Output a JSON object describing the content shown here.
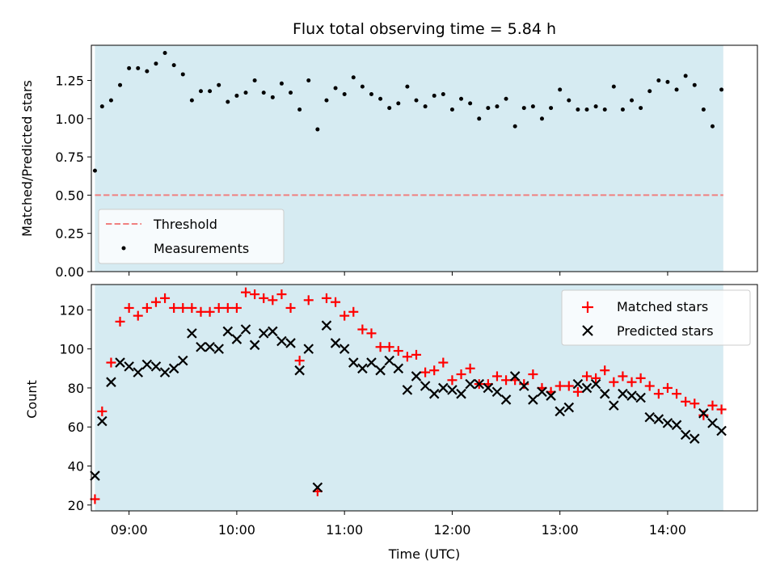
{
  "chart_data": {
    "type": "scatter",
    "title": "Flux total observing time = 5.84 h",
    "xlabel": "Time (UTC)",
    "x_unit": "UTC time of day",
    "xlim": [
      "08:39",
      "14:50"
    ],
    "x_ticks": [
      "09:00",
      "10:00",
      "11:00",
      "12:00",
      "13:00",
      "14:00"
    ],
    "observing_window": {
      "start": "08:41",
      "end": "14:31",
      "color": "#add8e6"
    },
    "x": [
      "08:41",
      "08:45",
      "08:50",
      "08:55",
      "09:00",
      "09:05",
      "09:10",
      "09:15",
      "09:20",
      "09:25",
      "09:30",
      "09:35",
      "09:40",
      "09:45",
      "09:50",
      "09:55",
      "10:00",
      "10:05",
      "10:10",
      "10:15",
      "10:20",
      "10:25",
      "10:30",
      "10:35",
      "10:40",
      "10:45",
      "10:50",
      "10:55",
      "11:00",
      "11:05",
      "11:10",
      "11:15",
      "11:20",
      "11:25",
      "11:30",
      "11:35",
      "11:40",
      "11:45",
      "11:50",
      "11:55",
      "12:00",
      "12:05",
      "12:10",
      "12:15",
      "12:20",
      "12:25",
      "12:30",
      "12:35",
      "12:40",
      "12:45",
      "12:50",
      "12:55",
      "13:00",
      "13:05",
      "13:10",
      "13:15",
      "13:20",
      "13:25",
      "13:30",
      "13:35",
      "13:40",
      "13:45",
      "13:50",
      "13:55",
      "14:00",
      "14:05",
      "14:10",
      "14:15",
      "14:20",
      "14:25",
      "14:30"
    ],
    "panels": [
      {
        "id": "ratio",
        "ylabel": "Matched/Predicted stars",
        "ylim": [
          0,
          1.48
        ],
        "y_ticks": [
          "0.00",
          "0.25",
          "0.50",
          "0.75",
          "1.00",
          "1.25"
        ],
        "threshold": 0.5,
        "legend_position": "lower-left",
        "series": [
          {
            "name": "Threshold",
            "style": "dashed-line",
            "color": "#f08080"
          },
          {
            "name": "Measurements",
            "style": "dot",
            "color": "#000000",
            "values": [
              0.66,
              1.08,
              1.12,
              1.22,
              1.33,
              1.33,
              1.31,
              1.36,
              1.43,
              1.35,
              1.29,
              1.12,
              1.18,
              1.18,
              1.22,
              1.11,
              1.15,
              1.17,
              1.25,
              1.17,
              1.14,
              1.23,
              1.17,
              1.06,
              1.25,
              0.93,
              1.12,
              1.2,
              1.16,
              1.27,
              1.21,
              1.16,
              1.13,
              1.07,
              1.1,
              1.21,
              1.12,
              1.08,
              1.15,
              1.16,
              1.06,
              1.13,
              1.1,
              1.0,
              1.07,
              1.08,
              1.13,
              0.95,
              1.07,
              1.08,
              1.0,
              1.07,
              1.19,
              1.12,
              1.06,
              1.06,
              1.08,
              1.06,
              1.21,
              1.06,
              1.12,
              1.07,
              1.18,
              1.25,
              1.24,
              1.19,
              1.28,
              1.22,
              1.06,
              0.95,
              1.19
            ]
          }
        ]
      },
      {
        "id": "counts",
        "ylabel": "Count",
        "ylim": [
          17,
          133
        ],
        "y_ticks": [
          "20",
          "40",
          "60",
          "80",
          "100",
          "120"
        ],
        "legend_position": "upper-right",
        "series": [
          {
            "name": "Matched stars",
            "marker": "plus",
            "color": "#ff0000",
            "values": [
              23,
              68,
              93,
              114,
              121,
              117,
              121,
              124,
              126,
              121,
              121,
              121,
              119,
              119,
              121,
              121,
              121,
              129,
              128,
              126,
              125,
              128,
              121,
              94,
              125,
              27,
              126,
              124,
              117,
              119,
              110,
              108,
              101,
              101,
              99,
              96,
              97,
              88,
              89,
              93,
              84,
              87,
              90,
              82,
              82,
              86,
              84,
              84,
              82,
              87,
              80,
              78,
              81,
              81,
              78,
              86,
              85,
              89,
              83,
              86,
              83,
              85,
              81,
              77,
              80,
              77,
              73,
              72,
              66,
              71,
              69
            ]
          },
          {
            "name": "Predicted stars",
            "marker": "cross",
            "color": "#000000",
            "values": [
              35,
              63,
              83,
              93,
              91,
              88,
              92,
              91,
              88,
              90,
              94,
              108,
              101,
              101,
              100,
              109,
              105,
              110,
              102,
              108,
              109,
              104,
              103,
              89,
              100,
              29,
              112,
              103,
              100,
              93,
              90,
              93,
              89,
              94,
              90,
              79,
              86,
              81,
              77,
              80,
              79,
              77,
              82,
              82,
              80,
              78,
              74,
              86,
              81,
              74,
              78,
              76,
              68,
              70,
              82,
              80,
              82,
              77,
              71,
              77,
              76,
              75,
              65,
              64,
              62,
              61,
              56,
              54,
              67,
              62,
              58
            ]
          }
        ]
      }
    ]
  }
}
